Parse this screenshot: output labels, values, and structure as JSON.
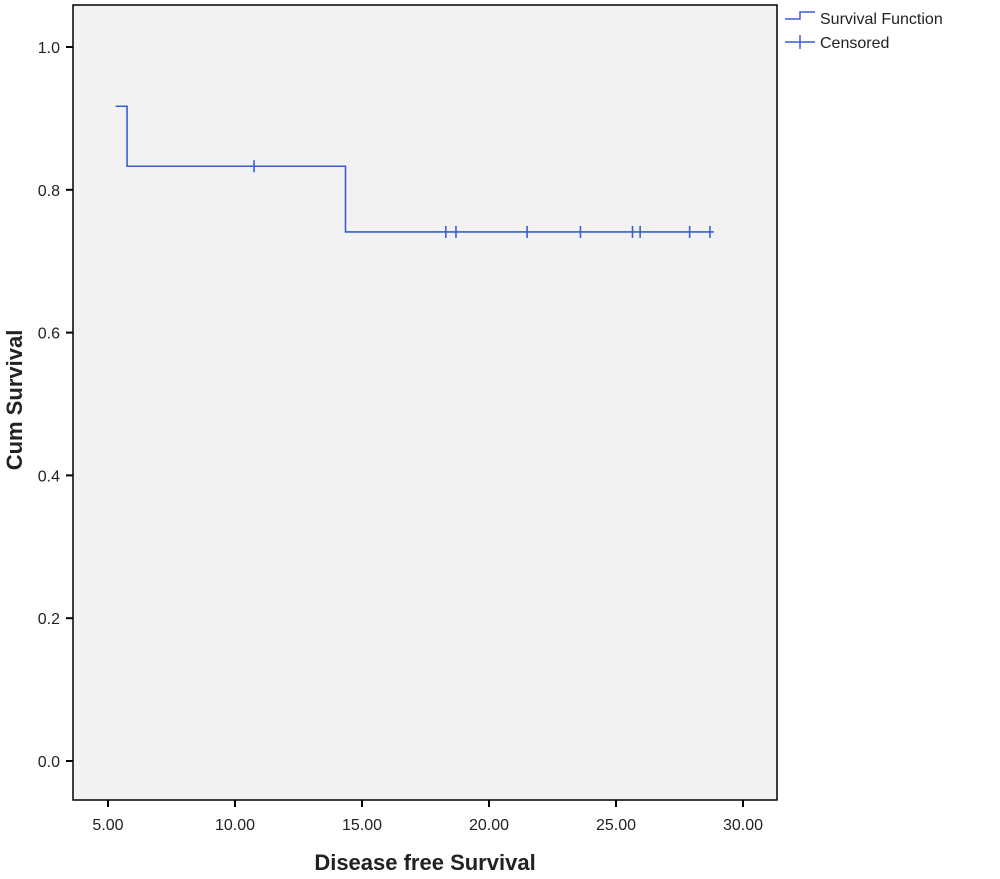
{
  "chart_data": {
    "type": "line",
    "subtype": "kaplan-meier step",
    "title": "",
    "xlabel": "Disease free Survival",
    "ylabel": "Cum Survival",
    "xlim": [
      3.6,
      31.4
    ],
    "ylim": [
      -0.055,
      1.06
    ],
    "xticks": [
      5,
      10,
      15,
      20,
      25,
      30
    ],
    "xtick_labels": [
      "5.00",
      "10.00",
      "15.00",
      "20.00",
      "25.00",
      "30.00"
    ],
    "yticks": [
      0,
      0.2,
      0.4,
      0.6,
      0.8,
      1.0
    ],
    "ytick_labels": [
      "0.0",
      "0.2",
      "0.4",
      "0.6",
      "0.8",
      "1.0"
    ],
    "grid": false,
    "legend": {
      "position": "top-right outside",
      "entries": [
        "Survival Function",
        "Censored"
      ]
    },
    "series": [
      {
        "name": "Survival Function",
        "color": "#3a5fcd",
        "steps": [
          {
            "x": 5.3,
            "y": 0.917
          },
          {
            "x": 5.75,
            "y": 0.833
          },
          {
            "x": 14.35,
            "y": 0.741
          },
          {
            "x": 28.85,
            "y": 0.741
          }
        ],
        "censored": [
          {
            "x": 10.75,
            "y": 0.833
          },
          {
            "x": 18.3,
            "y": 0.741
          },
          {
            "x": 18.7,
            "y": 0.741
          },
          {
            "x": 21.5,
            "y": 0.741
          },
          {
            "x": 23.6,
            "y": 0.741
          },
          {
            "x": 25.65,
            "y": 0.741
          },
          {
            "x": 25.95,
            "y": 0.741
          },
          {
            "x": 27.9,
            "y": 0.741
          },
          {
            "x": 28.7,
            "y": 0.741
          }
        ]
      }
    ]
  }
}
